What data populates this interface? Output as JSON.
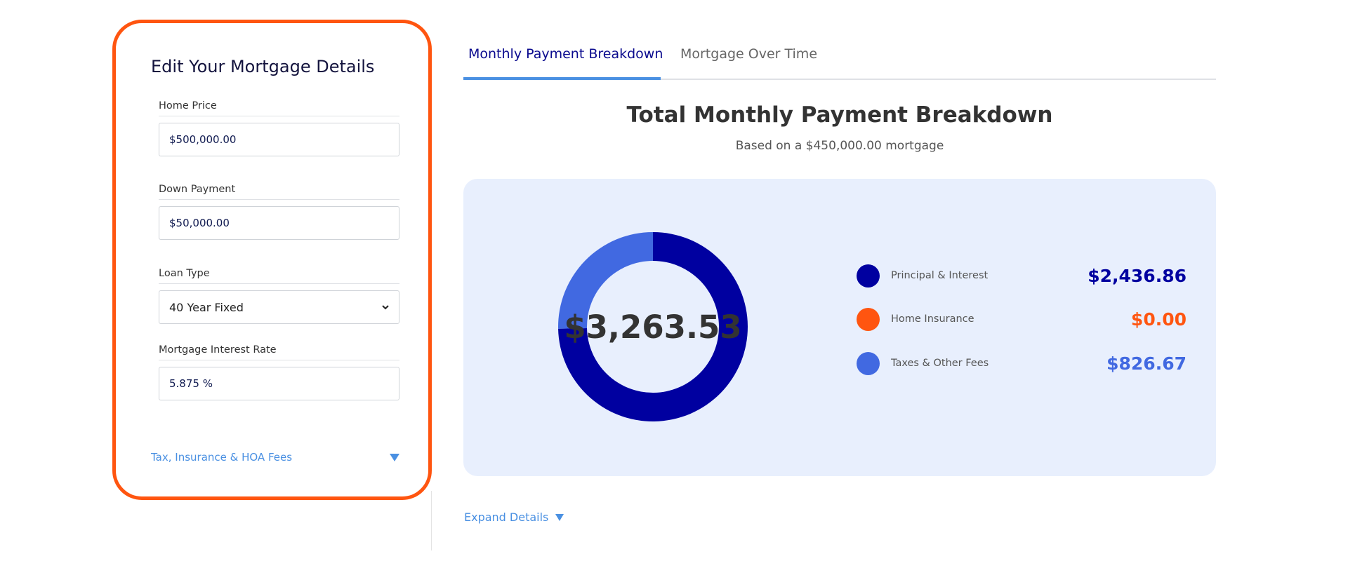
{
  "edit_panel": {
    "title": "Edit Your Mortgage Details",
    "fields": [
      {
        "label": "Home Price",
        "value": "$500,000.00"
      },
      {
        "label": "Down Payment",
        "value": "$50,000.00"
      },
      {
        "label": "Loan Type",
        "value": "40 Year Fixed"
      },
      {
        "label": "Mortgage Interest Rate",
        "value": "5.875 %"
      }
    ],
    "fees_toggle": "Tax, Insurance & HOA Fees",
    "border_color": "#ff5510"
  },
  "tabs": [
    {
      "label": "Monthly Payment Breakdown",
      "active": true
    },
    {
      "label": "Mortgage Over Time",
      "active": false
    }
  ],
  "main": {
    "title": "Total Monthly Payment Breakdown",
    "subtitle": "Based on a $450,000.00 mortgage"
  },
  "chart_data": {
    "type": "pie",
    "style": "donut",
    "total_label": "$3,263.53",
    "total": 3263.53,
    "slices": [
      {
        "name": "Principal & Interest",
        "value": 2436.86,
        "display": "$2,436.86",
        "color": "#0000a0"
      },
      {
        "name": "Home Insurance",
        "value": 0.0,
        "display": "$0.00",
        "color": "#ff5510"
      },
      {
        "name": "Taxes & Other Fees",
        "value": 826.67,
        "display": "$826.67",
        "color": "#4169e1"
      }
    ]
  },
  "expand_details": "Expand Details",
  "colors": {
    "accent": "#4a90e2",
    "card_background": "#e8effd",
    "tab_active": "#0a0a8e"
  }
}
